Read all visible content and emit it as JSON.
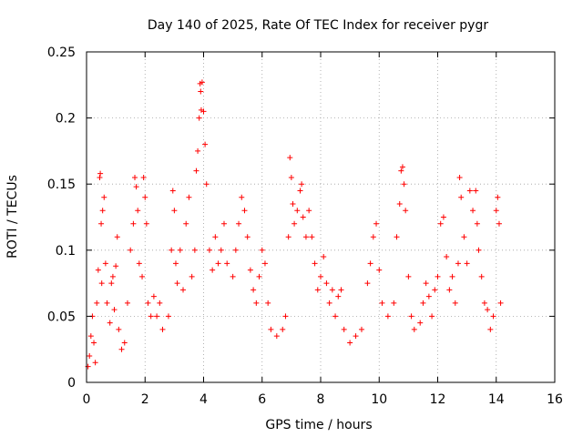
{
  "chart_data": {
    "type": "scatter",
    "title": "Day 140 of 2025, Rate Of TEC Index for receiver pygr",
    "xlabel": "GPS time / hours",
    "ylabel": "ROTI / TECUs",
    "xlim": [
      0,
      16
    ],
    "ylim": [
      0,
      0.25
    ],
    "xticks": [
      0,
      2,
      4,
      6,
      8,
      10,
      12,
      14,
      16
    ],
    "yticks": [
      0,
      0.05,
      0.1,
      0.15,
      0.2,
      0.25
    ],
    "xtick_labels": [
      "0",
      "2",
      "4",
      "6",
      "8",
      "10",
      "12",
      "14",
      "16"
    ],
    "ytick_labels": [
      "0",
      "0.05",
      "0.1",
      "0.15",
      "0.2",
      "0.25"
    ],
    "grid": true,
    "marker": "+",
    "color": "#ff0000",
    "series": [
      {
        "values_note": "",
        "points": [
          [
            0.05,
            0.012
          ],
          [
            0.1,
            0.02
          ],
          [
            0.15,
            0.035
          ],
          [
            0.2,
            0.05
          ],
          [
            0.25,
            0.03
          ],
          [
            0.3,
            0.015
          ],
          [
            0.35,
            0.06
          ],
          [
            0.4,
            0.085
          ],
          [
            0.45,
            0.155
          ],
          [
            0.47,
            0.158
          ],
          [
            0.5,
            0.12
          ],
          [
            0.52,
            0.075
          ],
          [
            0.55,
            0.13
          ],
          [
            0.6,
            0.14
          ],
          [
            0.65,
            0.09
          ],
          [
            0.7,
            0.06
          ],
          [
            0.8,
            0.045
          ],
          [
            0.85,
            0.075
          ],
          [
            0.9,
            0.08
          ],
          [
            0.95,
            0.055
          ],
          [
            1.0,
            0.088
          ],
          [
            1.05,
            0.11
          ],
          [
            1.1,
            0.04
          ],
          [
            1.2,
            0.025
          ],
          [
            1.3,
            0.03
          ],
          [
            1.4,
            0.06
          ],
          [
            1.5,
            0.1
          ],
          [
            1.6,
            0.12
          ],
          [
            1.65,
            0.155
          ],
          [
            1.7,
            0.148
          ],
          [
            1.75,
            0.13
          ],
          [
            1.8,
            0.09
          ],
          [
            1.9,
            0.08
          ],
          [
            1.95,
            0.155
          ],
          [
            2.0,
            0.14
          ],
          [
            2.05,
            0.12
          ],
          [
            2.1,
            0.06
          ],
          [
            2.2,
            0.05
          ],
          [
            2.3,
            0.065
          ],
          [
            2.4,
            0.05
          ],
          [
            2.5,
            0.06
          ],
          [
            2.6,
            0.04
          ],
          [
            2.8,
            0.05
          ],
          [
            2.9,
            0.1
          ],
          [
            2.95,
            0.145
          ],
          [
            3.0,
            0.13
          ],
          [
            3.05,
            0.09
          ],
          [
            3.1,
            0.075
          ],
          [
            3.2,
            0.1
          ],
          [
            3.3,
            0.07
          ],
          [
            3.4,
            0.12
          ],
          [
            3.5,
            0.14
          ],
          [
            3.6,
            0.08
          ],
          [
            3.7,
            0.1
          ],
          [
            3.75,
            0.16
          ],
          [
            3.8,
            0.175
          ],
          [
            3.85,
            0.2
          ],
          [
            3.88,
            0.226
          ],
          [
            3.9,
            0.22
          ],
          [
            3.92,
            0.206
          ],
          [
            3.95,
            0.227
          ],
          [
            4.0,
            0.205
          ],
          [
            4.05,
            0.18
          ],
          [
            4.1,
            0.15
          ],
          [
            4.2,
            0.1
          ],
          [
            4.3,
            0.085
          ],
          [
            4.4,
            0.11
          ],
          [
            4.5,
            0.09
          ],
          [
            4.6,
            0.1
          ],
          [
            4.7,
            0.12
          ],
          [
            4.8,
            0.09
          ],
          [
            5.0,
            0.08
          ],
          [
            5.1,
            0.1
          ],
          [
            5.2,
            0.12
          ],
          [
            5.3,
            0.14
          ],
          [
            5.4,
            0.13
          ],
          [
            5.5,
            0.11
          ],
          [
            5.6,
            0.085
          ],
          [
            5.7,
            0.07
          ],
          [
            5.8,
            0.06
          ],
          [
            5.9,
            0.08
          ],
          [
            6.0,
            0.1
          ],
          [
            6.1,
            0.09
          ],
          [
            6.2,
            0.06
          ],
          [
            6.3,
            0.04
          ],
          [
            6.5,
            0.035
          ],
          [
            6.7,
            0.04
          ],
          [
            6.8,
            0.05
          ],
          [
            6.9,
            0.11
          ],
          [
            6.95,
            0.17
          ],
          [
            7.0,
            0.155
          ],
          [
            7.05,
            0.135
          ],
          [
            7.1,
            0.12
          ],
          [
            7.2,
            0.13
          ],
          [
            7.3,
            0.145
          ],
          [
            7.35,
            0.15
          ],
          [
            7.4,
            0.125
          ],
          [
            7.5,
            0.11
          ],
          [
            7.6,
            0.13
          ],
          [
            7.7,
            0.11
          ],
          [
            7.8,
            0.09
          ],
          [
            7.9,
            0.07
          ],
          [
            8.0,
            0.08
          ],
          [
            8.1,
            0.095
          ],
          [
            8.2,
            0.075
          ],
          [
            8.3,
            0.06
          ],
          [
            8.4,
            0.07
          ],
          [
            8.5,
            0.05
          ],
          [
            8.6,
            0.065
          ],
          [
            8.7,
            0.07
          ],
          [
            8.8,
            0.04
          ],
          [
            9.0,
            0.03
          ],
          [
            9.2,
            0.035
          ],
          [
            9.4,
            0.04
          ],
          [
            9.6,
            0.075
          ],
          [
            9.7,
            0.09
          ],
          [
            9.8,
            0.11
          ],
          [
            9.9,
            0.12
          ],
          [
            10.0,
            0.085
          ],
          [
            10.1,
            0.06
          ],
          [
            10.3,
            0.05
          ],
          [
            10.5,
            0.06
          ],
          [
            10.6,
            0.11
          ],
          [
            10.7,
            0.135
          ],
          [
            10.75,
            0.16
          ],
          [
            10.8,
            0.163
          ],
          [
            10.85,
            0.15
          ],
          [
            10.9,
            0.13
          ],
          [
            11.0,
            0.08
          ],
          [
            11.1,
            0.05
          ],
          [
            11.2,
            0.04
          ],
          [
            11.4,
            0.045
          ],
          [
            11.5,
            0.06
          ],
          [
            11.6,
            0.075
          ],
          [
            11.7,
            0.065
          ],
          [
            11.8,
            0.05
          ],
          [
            11.9,
            0.07
          ],
          [
            12.0,
            0.08
          ],
          [
            12.1,
            0.12
          ],
          [
            12.2,
            0.125
          ],
          [
            12.3,
            0.095
          ],
          [
            12.4,
            0.07
          ],
          [
            12.5,
            0.08
          ],
          [
            12.6,
            0.06
          ],
          [
            12.7,
            0.09
          ],
          [
            12.75,
            0.155
          ],
          [
            12.8,
            0.14
          ],
          [
            12.9,
            0.11
          ],
          [
            13.0,
            0.09
          ],
          [
            13.1,
            0.145
          ],
          [
            13.2,
            0.13
          ],
          [
            13.3,
            0.145
          ],
          [
            13.35,
            0.12
          ],
          [
            13.4,
            0.1
          ],
          [
            13.5,
            0.08
          ],
          [
            13.6,
            0.06
          ],
          [
            13.7,
            0.055
          ],
          [
            13.8,
            0.04
          ],
          [
            13.9,
            0.05
          ],
          [
            14.0,
            0.13
          ],
          [
            14.05,
            0.14
          ],
          [
            14.1,
            0.12
          ],
          [
            14.15,
            0.06
          ]
        ]
      }
    ]
  }
}
